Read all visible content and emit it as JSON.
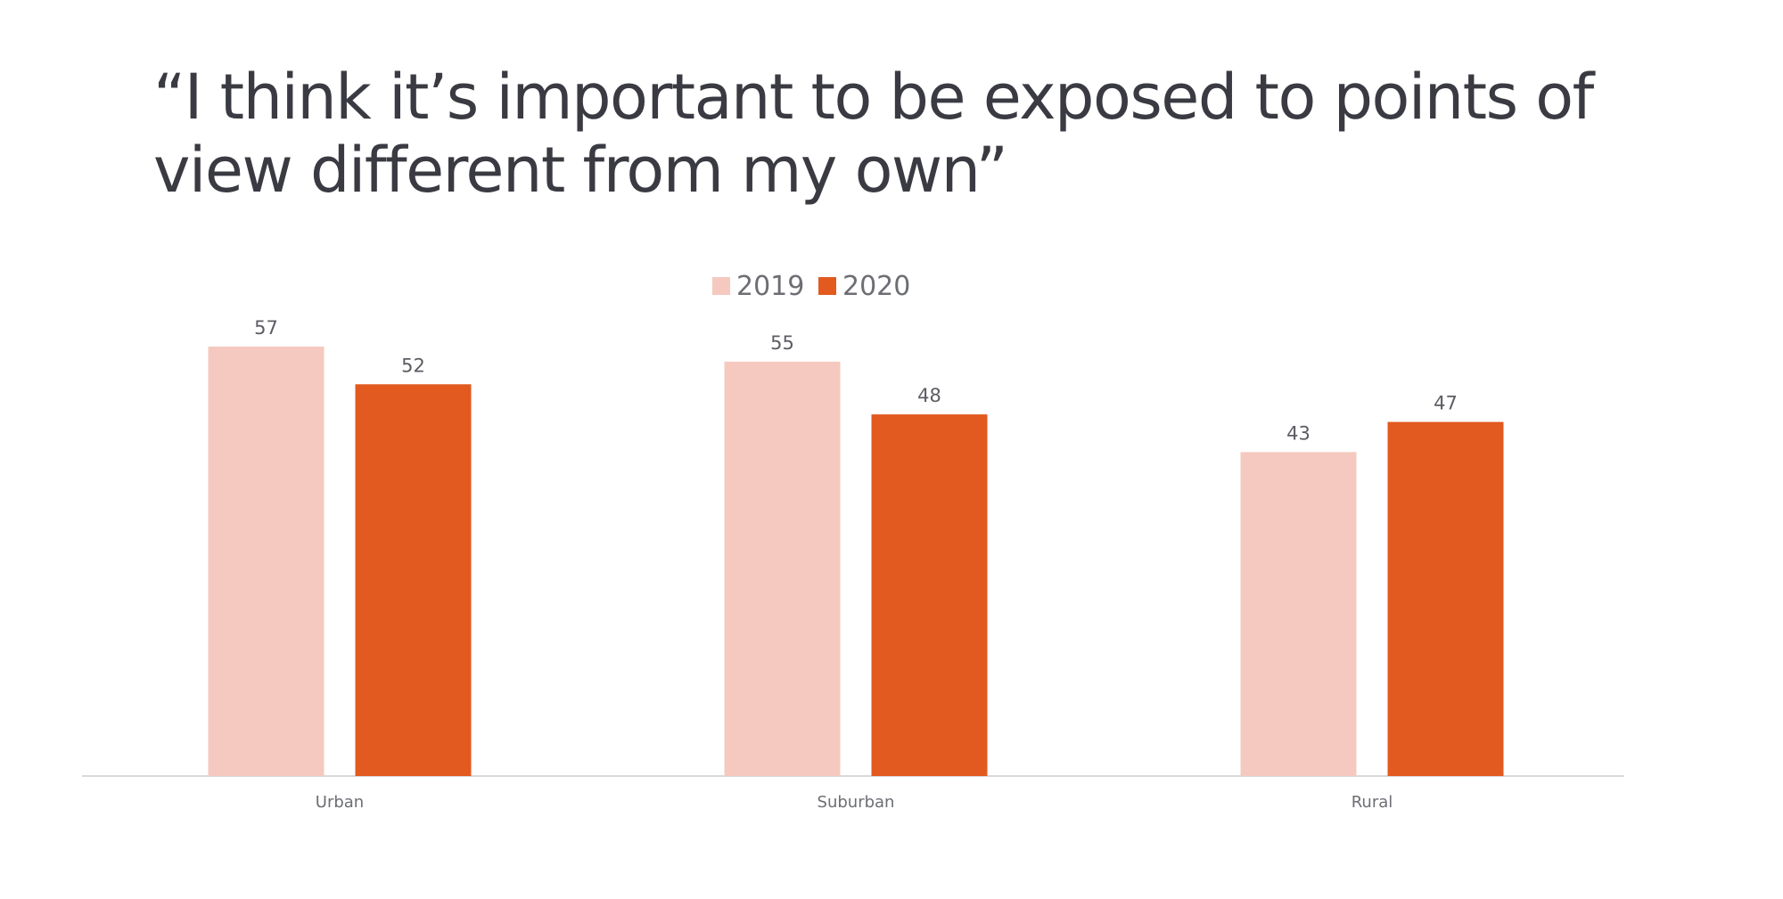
{
  "chart_data": {
    "type": "bar",
    "title": "“I think it’s important to be exposed to points of view different from my own”",
    "categories": [
      "Urban",
      "Suburban",
      "Rural"
    ],
    "series": [
      {
        "name": "2019",
        "values": [
          57,
          55,
          43
        ],
        "color": "#f5c9bf"
      },
      {
        "name": "2020",
        "values": [
          52,
          48,
          47
        ],
        "color": "#e25a1f"
      }
    ],
    "ylim": [
      0,
      57
    ],
    "grid": false,
    "legend_position": "top-center",
    "data_labels": true
  },
  "colors": {
    "title": "#3a3b42",
    "axis": "#d9d9d9",
    "label_text": "#5b5d63"
  }
}
